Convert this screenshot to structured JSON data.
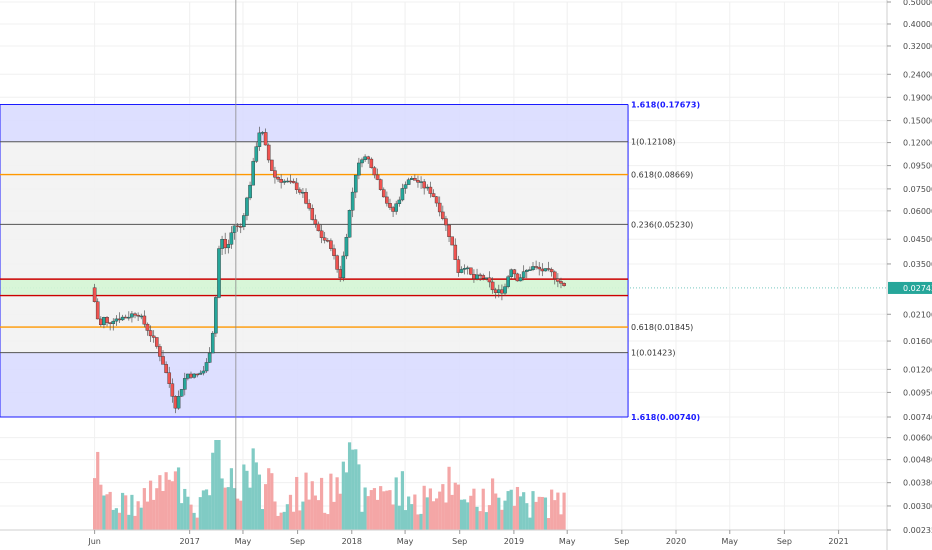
{
  "chart_data": {
    "type": "candlestick",
    "y_scale": "log",
    "ylim": [
      0.00235,
      0.5
    ],
    "xlim": [
      "2015-11-01",
      "2021-04-20"
    ],
    "grid": true,
    "y_ticks": [
      "0.50000",
      "0.40000",
      "0.32000",
      "0.24000",
      "0.19000",
      "0.15000",
      "0.12000",
      "0.09500",
      "0.07500",
      "0.06000",
      "0.04500",
      "0.03500",
      "0.02743",
      "0.02100",
      "0.01600",
      "0.01200",
      "0.00950",
      "0.00740",
      "0.00600",
      "0.00480",
      "0.00380",
      "0.00300",
      "0.00235"
    ],
    "y_tick_values": [
      0.5,
      0.4,
      0.32,
      0.24,
      0.19,
      0.15,
      0.12,
      0.095,
      0.075,
      0.06,
      0.045,
      0.035,
      0.02743,
      0.021,
      0.016,
      0.012,
      0.0095,
      0.0074,
      0.006,
      0.0048,
      0.0038,
      0.003,
      0.00235
    ],
    "x_ticks": [
      {
        "label": "Jun",
        "date": "2016-06-01"
      },
      {
        "label": "2017",
        "date": "2017-01-01"
      },
      {
        "label": "May",
        "date": "2017-05-01"
      },
      {
        "label": "Sep",
        "date": "2017-09-01"
      },
      {
        "label": "2018",
        "date": "2018-01-01"
      },
      {
        "label": "May",
        "date": "2018-05-01"
      },
      {
        "label": "Sep",
        "date": "2018-09-01"
      },
      {
        "label": "2019",
        "date": "2019-01-01"
      },
      {
        "label": "May",
        "date": "2019-05-01"
      },
      {
        "label": "Sep",
        "date": "2019-09-01"
      },
      {
        "label": "2020",
        "date": "2020-01-01"
      },
      {
        "label": "May",
        "date": "2020-05-01"
      },
      {
        "label": "Sep",
        "date": "2020-09-01"
      },
      {
        "label": "2021",
        "date": "2021-01-01"
      }
    ],
    "last_price": {
      "label": "0.02743",
      "value": 0.02743,
      "color": "#26a69a"
    },
    "price_path": [
      {
        "date": "2016-05-25",
        "price": 0.0275
      },
      {
        "date": "2016-06-05",
        "price": 0.022
      },
      {
        "date": "2016-06-12",
        "price": 0.0178
      },
      {
        "date": "2016-06-20",
        "price": 0.0205
      },
      {
        "date": "2016-07-01",
        "price": 0.0188
      },
      {
        "date": "2016-07-10",
        "price": 0.02
      },
      {
        "date": "2016-08-01",
        "price": 0.0203
      },
      {
        "date": "2016-08-20",
        "price": 0.0208
      },
      {
        "date": "2016-09-05",
        "price": 0.0215
      },
      {
        "date": "2016-09-25",
        "price": 0.0185
      },
      {
        "date": "2016-10-15",
        "price": 0.0158
      },
      {
        "date": "2016-11-01",
        "price": 0.013
      },
      {
        "date": "2016-11-20",
        "price": 0.0098
      },
      {
        "date": "2016-12-01",
        "price": 0.0082
      },
      {
        "date": "2016-12-10",
        "price": 0.0095
      },
      {
        "date": "2016-12-25",
        "price": 0.0115
      },
      {
        "date": "2017-01-15",
        "price": 0.0112
      },
      {
        "date": "2017-02-05",
        "price": 0.012
      },
      {
        "date": "2017-02-20",
        "price": 0.016
      },
      {
        "date": "2017-03-01",
        "price": 0.025
      },
      {
        "date": "2017-03-10",
        "price": 0.047
      },
      {
        "date": "2017-03-25",
        "price": 0.04
      },
      {
        "date": "2017-04-10",
        "price": 0.052
      },
      {
        "date": "2017-04-25",
        "price": 0.05
      },
      {
        "date": "2017-05-15",
        "price": 0.075
      },
      {
        "date": "2017-06-05",
        "price": 0.135
      },
      {
        "date": "2017-06-15",
        "price": 0.13
      },
      {
        "date": "2017-06-25",
        "price": 0.105
      },
      {
        "date": "2017-07-10",
        "price": 0.085
      },
      {
        "date": "2017-07-25",
        "price": 0.082
      },
      {
        "date": "2017-08-10",
        "price": 0.08
      },
      {
        "date": "2017-08-25",
        "price": 0.078
      },
      {
        "date": "2017-09-15",
        "price": 0.07
      },
      {
        "date": "2017-10-05",
        "price": 0.054
      },
      {
        "date": "2017-10-25",
        "price": 0.046
      },
      {
        "date": "2017-11-15",
        "price": 0.042
      },
      {
        "date": "2017-12-05",
        "price": 0.03
      },
      {
        "date": "2017-12-15",
        "price": 0.04
      },
      {
        "date": "2017-12-28",
        "price": 0.062
      },
      {
        "date": "2018-01-10",
        "price": 0.088
      },
      {
        "date": "2018-01-25",
        "price": 0.105
      },
      {
        "date": "2018-02-10",
        "price": 0.1
      },
      {
        "date": "2018-02-25",
        "price": 0.085
      },
      {
        "date": "2018-03-15",
        "price": 0.07
      },
      {
        "date": "2018-04-01",
        "price": 0.058
      },
      {
        "date": "2018-04-20",
        "price": 0.07
      },
      {
        "date": "2018-05-05",
        "price": 0.083
      },
      {
        "date": "2018-05-25",
        "price": 0.082
      },
      {
        "date": "2018-06-15",
        "price": 0.076
      },
      {
        "date": "2018-07-01",
        "price": 0.072
      },
      {
        "date": "2018-07-20",
        "price": 0.06
      },
      {
        "date": "2018-08-10",
        "price": 0.046
      },
      {
        "date": "2018-08-30",
        "price": 0.032
      },
      {
        "date": "2018-09-10",
        "price": 0.035
      },
      {
        "date": "2018-10-01",
        "price": 0.03
      },
      {
        "date": "2018-10-20",
        "price": 0.031
      },
      {
        "date": "2018-11-05",
        "price": 0.029
      },
      {
        "date": "2018-11-20",
        "price": 0.026
      },
      {
        "date": "2018-12-10",
        "price": 0.027
      },
      {
        "date": "2018-12-25",
        "price": 0.034
      },
      {
        "date": "2019-01-10",
        "price": 0.03
      },
      {
        "date": "2019-01-25",
        "price": 0.032
      },
      {
        "date": "2019-02-10",
        "price": 0.034
      },
      {
        "date": "2019-03-01",
        "price": 0.033
      },
      {
        "date": "2019-03-25",
        "price": 0.032
      },
      {
        "date": "2019-04-10",
        "price": 0.03
      },
      {
        "date": "2019-04-25",
        "price": 0.0275
      }
    ],
    "fibonacci": [
      {
        "level": "1.618",
        "label": "1.618(0.17673)",
        "value": 0.17673,
        "color": "#1a1aff",
        "extension": true
      },
      {
        "level": "1",
        "label": "1(0.12108)",
        "value": 0.12108,
        "color": "#555555"
      },
      {
        "level": "0.618",
        "label": "0.618(0.08669)",
        "value": 0.08669,
        "color": "#ff9800"
      },
      {
        "level": "0.236",
        "label": "0.236(0.05230)",
        "value": 0.0523,
        "color": "#555555"
      },
      {
        "level": "0.236",
        "label": "",
        "value": 0.03,
        "color": "#cc0000"
      },
      {
        "level": "0",
        "label": "",
        "value": 0.0254,
        "color": "#cc0000"
      },
      {
        "level": "0.618",
        "label": "0.618(0.01845)",
        "value": 0.01845,
        "color": "#ff9800"
      },
      {
        "level": "1",
        "label": "1(0.01423)",
        "value": 0.01423,
        "color": "#555555"
      },
      {
        "level": "1.618",
        "label": "1.618(0.00740)",
        "value": 0.0074,
        "color": "#1a1aff",
        "extension": true
      }
    ],
    "fib_box": {
      "start": "2015-11-01",
      "end": "2019-09-15"
    },
    "green_zone": {
      "low": 0.0254,
      "high": 0.03
    },
    "vertical_marker": {
      "date": "2017-04-15"
    },
    "volume_colors": {
      "up": "#80cbc4",
      "down": "#f4a6a6"
    }
  }
}
